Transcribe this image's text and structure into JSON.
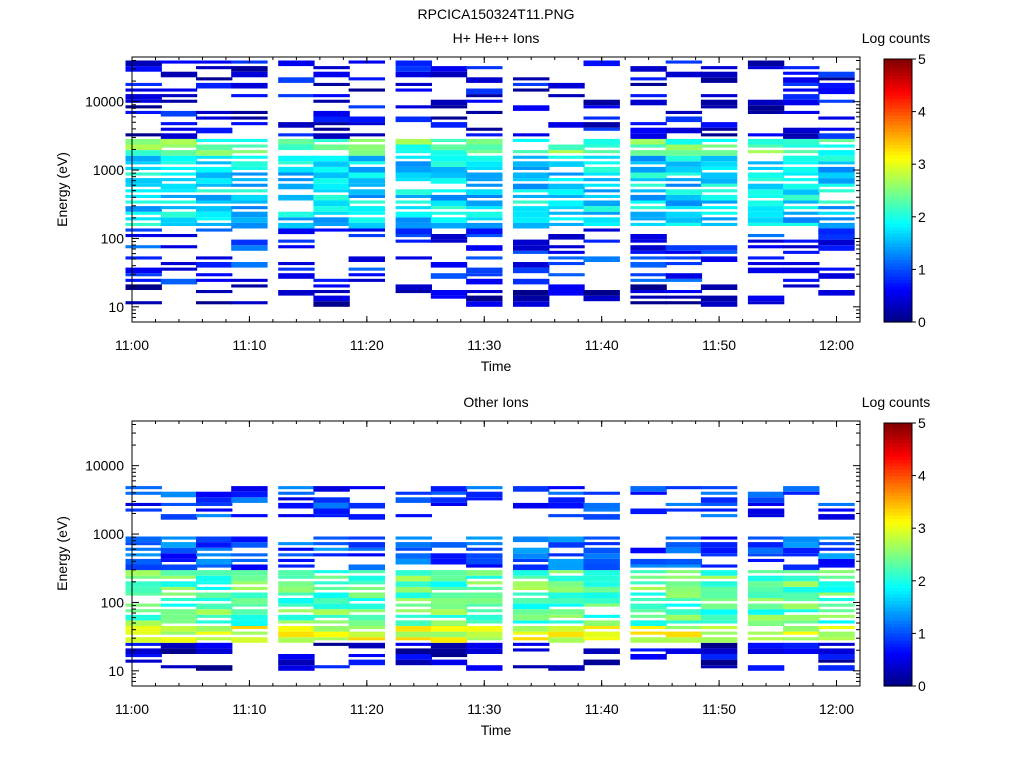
{
  "figure": {
    "title": "RPCICA150324T11.PNG"
  },
  "colorbar": {
    "label": "Log counts",
    "ticks": [
      "0",
      "1",
      "2",
      "3",
      "4",
      "5"
    ],
    "range": [
      0,
      5
    ]
  },
  "panels": [
    {
      "title": "H+ He++ Ions",
      "xlabel": "Time",
      "ylabel": "Energy (eV)"
    },
    {
      "title": "Other Ions",
      "xlabel": "Time",
      "ylabel": "Energy (eV)"
    }
  ],
  "x_ticks": [
    "11:00",
    "11:10",
    "11:20",
    "11:30",
    "11:40",
    "11:50",
    "12:00"
  ],
  "y_ticks": [
    "10",
    "100",
    "1000",
    "10000"
  ],
  "chart_data": [
    {
      "type": "heatmap",
      "title": "H+ He++ Ions",
      "xlabel": "Time",
      "ylabel": "Energy (eV)",
      "x_range": [
        "11:00",
        "12:02"
      ],
      "x_time_bins": [
        "11:01",
        "11:04",
        "11:07",
        "11:10",
        "11:14",
        "11:17",
        "11:20",
        "11:24",
        "11:27",
        "11:30",
        "11:34",
        "11:37",
        "11:40",
        "11:44",
        "11:47",
        "11:50",
        "11:54",
        "11:57",
        "12:00"
      ],
      "y_scale": "log",
      "y_range": [
        6,
        45000
      ],
      "colorbar": {
        "label": "Log counts",
        "range": [
          0,
          5
        ]
      },
      "energy_band_summary": [
        {
          "energy_eV": [
            10,
            20
          ],
          "log_counts": 0.2
        },
        {
          "energy_eV": [
            20,
            150
          ],
          "log_counts": 0.8
        },
        {
          "energy_eV": [
            150,
            1500
          ],
          "log_counts": 1.7
        },
        {
          "energy_eV": [
            1500,
            2800
          ],
          "log_counts": 2.3
        },
        {
          "energy_eV": [
            2800,
            40000
          ],
          "log_counts": 0.5
        }
      ]
    },
    {
      "type": "heatmap",
      "title": "Other Ions",
      "xlabel": "Time",
      "ylabel": "Energy (eV)",
      "x_range": [
        "11:00",
        "12:02"
      ],
      "x_time_bins": [
        "11:01",
        "11:04",
        "11:07",
        "11:10",
        "11:14",
        "11:17",
        "11:20",
        "11:24",
        "11:27",
        "11:30",
        "11:34",
        "11:37",
        "11:40",
        "11:44",
        "11:47",
        "11:50",
        "11:54",
        "11:57",
        "12:00"
      ],
      "y_scale": "log",
      "y_range": [
        6,
        45000
      ],
      "colorbar": {
        "label": "Log counts",
        "range": [
          0,
          5
        ]
      },
      "energy_band_summary": [
        {
          "energy_eV": [
            10,
            25
          ],
          "log_counts": 0.4
        },
        {
          "energy_eV": [
            25,
            45
          ],
          "log_counts": 3.0
        },
        {
          "energy_eV": [
            45,
            300
          ],
          "log_counts": 2.3
        },
        {
          "energy_eV": [
            300,
            1000
          ],
          "log_counts": 1.0
        },
        {
          "energy_eV": [
            1600,
            5000
          ],
          "log_counts": 0.9
        }
      ]
    }
  ]
}
